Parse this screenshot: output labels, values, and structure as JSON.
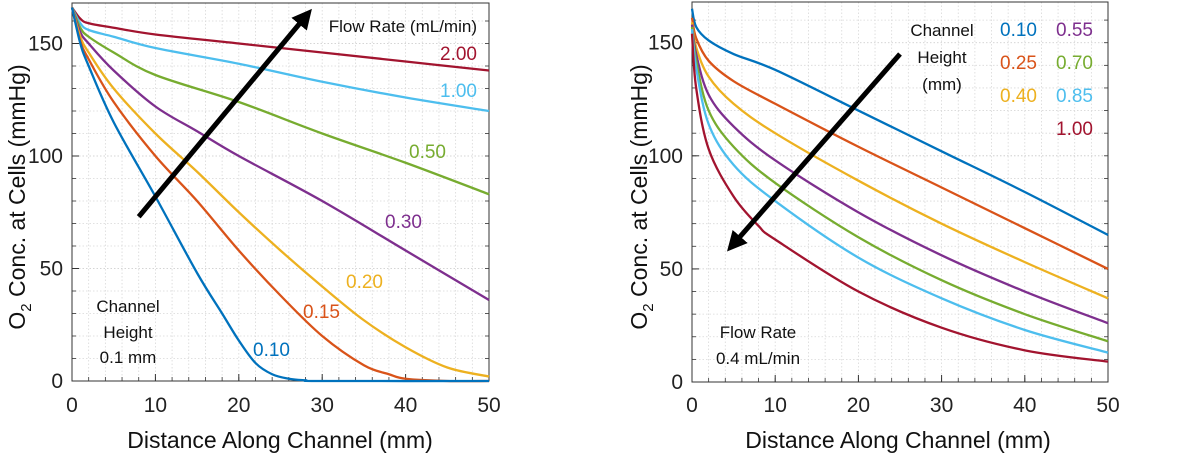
{
  "chart_data": [
    {
      "type": "line",
      "title": "",
      "xlabel": "Distance Along Channel (mm)",
      "ylabel_parts": [
        "O",
        "2",
        " Conc. at Cells (mmHg)"
      ],
      "xlim": [
        0,
        50
      ],
      "ylim": [
        0,
        168
      ],
      "xticks": [
        0,
        10,
        20,
        30,
        40,
        50
      ],
      "yticks": [
        0,
        50,
        100,
        150
      ],
      "grid": true,
      "legend_title": "Flow Rate (mL/min)",
      "annotation": [
        "Channel",
        "Height",
        "0.1 mm"
      ],
      "arrow": {
        "from": [
          8,
          73
        ],
        "to": [
          28,
          162
        ]
      },
      "series": [
        {
          "name": "2.00",
          "color": "#A2142F",
          "x": [
            0,
            1,
            2,
            5,
            10,
            20,
            30,
            40,
            50
          ],
          "y": [
            166,
            161,
            159,
            157,
            154,
            150,
            146,
            142,
            138
          ]
        },
        {
          "name": "1.00",
          "color": "#4DBEEE",
          "x": [
            0,
            1,
            2,
            5,
            10,
            20,
            30,
            40,
            50
          ],
          "y": [
            166,
            159,
            156,
            153,
            148,
            141,
            133,
            126,
            120
          ]
        },
        {
          "name": "0.50",
          "color": "#77AC30",
          "x": [
            0,
            1,
            2,
            5,
            10,
            20,
            30,
            40,
            50
          ],
          "y": [
            166,
            157,
            153,
            146,
            136,
            124,
            110,
            97,
            83
          ]
        },
        {
          "name": "0.30",
          "color": "#7E2F8E",
          "x": [
            0,
            1,
            2,
            5,
            10,
            15,
            20,
            30,
            40,
            50
          ],
          "y": [
            166,
            155,
            150,
            138,
            122,
            111,
            100,
            80,
            58,
            36
          ]
        },
        {
          "name": "0.20",
          "color": "#EDB120",
          "x": [
            0,
            1,
            2,
            5,
            10,
            15,
            20,
            25,
            30,
            35,
            40,
            45,
            50
          ],
          "y": [
            166,
            153,
            146,
            130,
            110,
            93,
            75,
            58,
            42,
            27,
            15,
            6,
            2
          ]
        },
        {
          "name": "0.15",
          "color": "#D95319",
          "x": [
            0,
            1,
            2,
            5,
            10,
            15,
            20,
            25,
            30,
            35,
            38,
            40,
            45,
            50
          ],
          "y": [
            166,
            151,
            143,
            124,
            100,
            80,
            58,
            38,
            20,
            7,
            3,
            1,
            0,
            0
          ]
        },
        {
          "name": "0.10",
          "color": "#0072BD",
          "x": [
            0,
            1,
            2,
            5,
            10,
            15,
            18,
            20,
            22,
            24,
            26,
            28,
            30,
            50
          ],
          "y": [
            166,
            150,
            140,
            115,
            82,
            48,
            30,
            18,
            8,
            3,
            1,
            0.3,
            0,
            0
          ]
        }
      ]
    },
    {
      "type": "line",
      "title": "",
      "xlabel": "Distance Along Channel (mm)",
      "ylabel_parts": [
        "O",
        "2",
        " Conc. at Cells (mmHg)"
      ],
      "xlim": [
        0,
        50
      ],
      "ylim": [
        0,
        168
      ],
      "xticks": [
        0,
        10,
        20,
        30,
        40,
        50
      ],
      "yticks": [
        0,
        50,
        100,
        150
      ],
      "grid": true,
      "legend_title": [
        "Channel",
        "Height",
        "(mm)"
      ],
      "annotation": [
        "Flow Rate",
        "0.4 mL/min"
      ],
      "arrow": {
        "from": [
          25,
          145
        ],
        "to": [
          5,
          61
        ]
      },
      "series": [
        {
          "name": "0.10",
          "color": "#0072BD",
          "x": [
            0,
            0.5,
            2,
            5,
            10,
            20,
            30,
            40,
            50
          ],
          "y": [
            165,
            157,
            151,
            145,
            138,
            120,
            102,
            84,
            65
          ]
        },
        {
          "name": "0.25",
          "color": "#D95319",
          "x": [
            0,
            0.5,
            2,
            5,
            10,
            20,
            30,
            40,
            50
          ],
          "y": [
            161,
            152,
            142,
            133,
            123,
            104,
            86,
            68,
            50
          ]
        },
        {
          "name": "0.40",
          "color": "#EDB120",
          "x": [
            0,
            0.5,
            2,
            5,
            10,
            20,
            30,
            40,
            50
          ],
          "y": [
            159,
            148,
            135,
            123,
            110,
            89,
            70,
            53,
            37
          ]
        },
        {
          "name": "0.55",
          "color": "#7E2F8E",
          "x": [
            0,
            0.5,
            2,
            5,
            10,
            20,
            30,
            40,
            50
          ],
          "y": [
            158,
            145,
            127,
            113,
            98,
            75,
            56,
            40,
            26
          ]
        },
        {
          "name": "0.70",
          "color": "#77AC30",
          "x": [
            0,
            0.5,
            2,
            5,
            10,
            20,
            30,
            40,
            50
          ],
          "y": [
            157,
            142,
            120,
            104,
            88,
            64,
            45,
            30,
            18
          ]
        },
        {
          "name": "0.85",
          "color": "#4DBEEE",
          "x": [
            0,
            0.5,
            2,
            5,
            10,
            20,
            30,
            40,
            50
          ],
          "y": [
            156,
            139,
            114,
            96,
            80,
            55,
            37,
            23,
            13
          ]
        },
        {
          "name": "1.00",
          "color": "#A2142F",
          "x": [
            0,
            0.5,
            2,
            5,
            8,
            10,
            20,
            30,
            40,
            50
          ],
          "y": [
            154,
            130,
            103,
            82,
            69,
            63,
            40,
            24,
            14,
            9
          ]
        }
      ]
    }
  ]
}
